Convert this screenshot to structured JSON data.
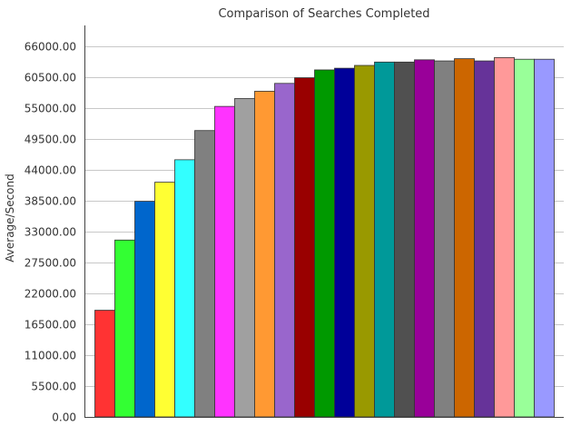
{
  "chart_data": {
    "type": "bar",
    "title": "Comparison of Searches Completed",
    "xlabel": "",
    "ylabel": "Average/Second",
    "ylim": [
      0,
      66000
    ],
    "yticks": [
      "0.00",
      "5500.00",
      "11000.00",
      "16500.00",
      "22000.00",
      "27500.00",
      "33000.00",
      "38500.00",
      "44000.00",
      "49500.00",
      "55000.00",
      "60500.00",
      "66000.00"
    ],
    "ytick_values": [
      0,
      5500,
      11000,
      16500,
      22000,
      27500,
      33000,
      38500,
      44000,
      49500,
      55000,
      60500,
      66000
    ],
    "grid": true,
    "legend": "none",
    "values": [
      19000,
      31500,
      38400,
      41800,
      45800,
      51000,
      55300,
      56700,
      58000,
      59400,
      60400,
      61800,
      62100,
      62600,
      63200,
      63200,
      63600,
      63400,
      63800,
      63400,
      64000,
      63700,
      63700
    ],
    "colors": [
      "#ff3333",
      "#33ff33",
      "#0066cc",
      "#ffff33",
      "#33ffff",
      "#808080",
      "#ff33ff",
      "#a0a0a0",
      "#ff9933",
      "#9966cc",
      "#990000",
      "#009900",
      "#000099",
      "#999900",
      "#009999",
      "#505050",
      "#990099",
      "#808080",
      "#cc6600",
      "#663399",
      "#ff9999",
      "#99ff99",
      "#9999ff"
    ]
  }
}
